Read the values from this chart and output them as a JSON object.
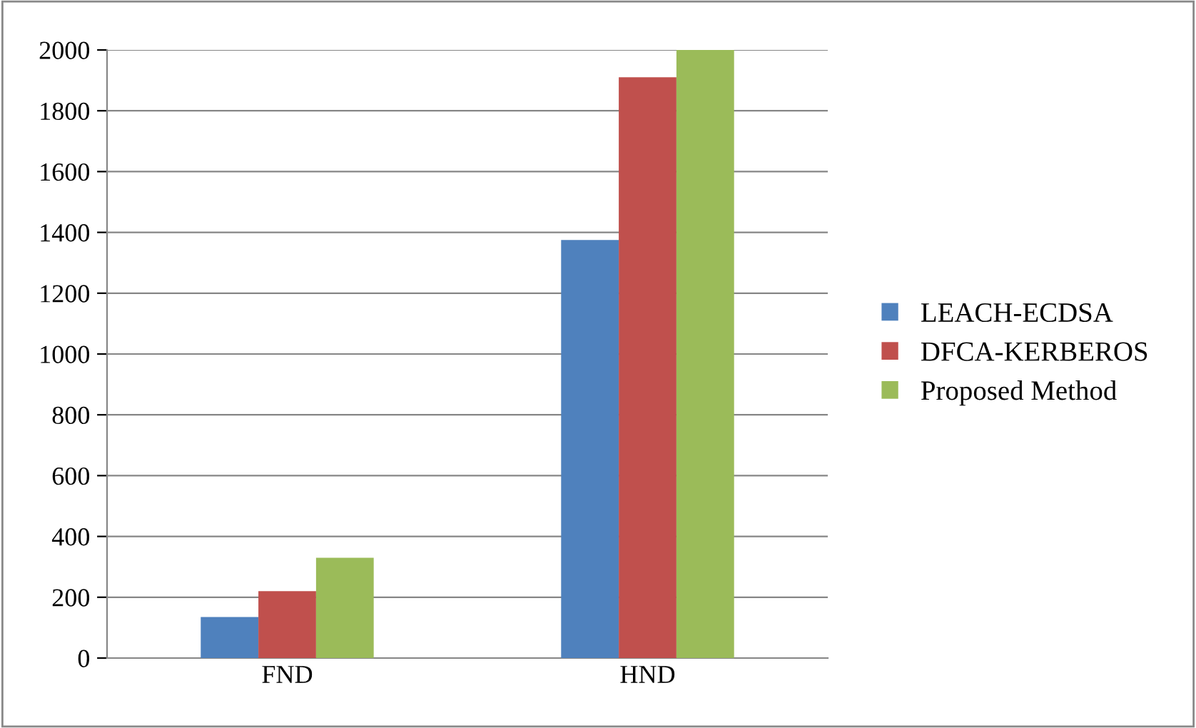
{
  "chart_data": {
    "type": "bar",
    "categories": [
      "FND",
      "HND"
    ],
    "series": [
      {
        "name": "LEACH-ECDSA",
        "color": "#4f81bd",
        "values": [
          135,
          1375
        ]
      },
      {
        "name": "DFCA-KERBEROS",
        "color": "#c0504d",
        "values": [
          220,
          1910
        ]
      },
      {
        "name": "Proposed Method",
        "color": "#9bbb59",
        "values": [
          330,
          2000
        ]
      }
    ],
    "ylim": [
      0,
      2000
    ],
    "yticks": [
      0,
      200,
      400,
      600,
      800,
      1000,
      1200,
      1400,
      1600,
      1800,
      2000
    ],
    "grid": "y",
    "legend": "right"
  }
}
